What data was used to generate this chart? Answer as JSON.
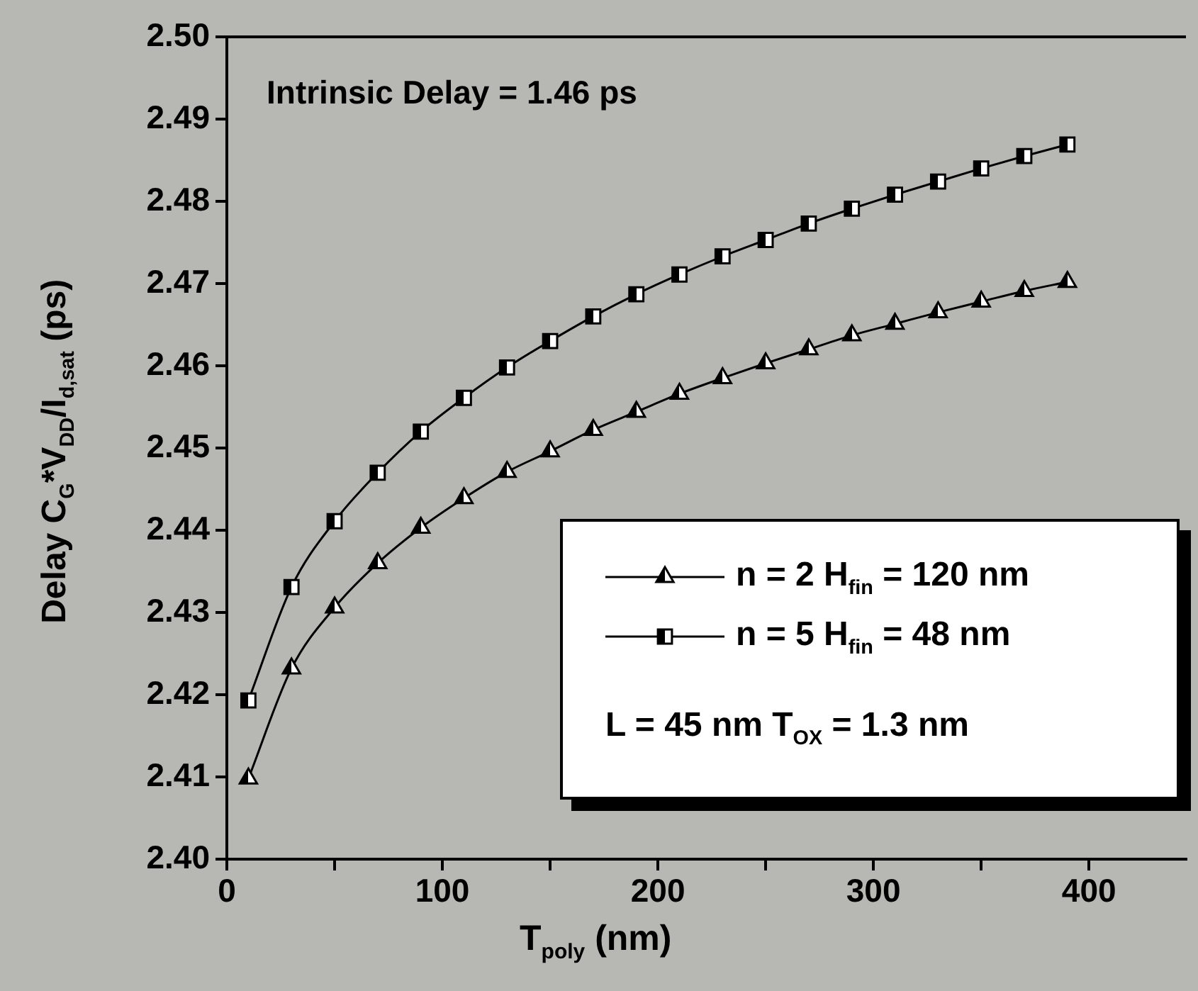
{
  "chart_data": {
    "type": "line",
    "xlabel": "T$_{poly}$  (nm)",
    "ylabel": "Delay  C$_{G}$*V$_{DD}$/I$_{d,sat}$  (ps)",
    "annotations": [
      "Intrinsic Delay = 1.46 ps",
      "L = 45 nm   T$_{OX}$ = 1.3 nm"
    ],
    "x": [
      10,
      30,
      50,
      70,
      90,
      110,
      130,
      150,
      170,
      190,
      210,
      230,
      250,
      270,
      290,
      310,
      330,
      350,
      370,
      390
    ],
    "series": [
      {
        "name": "n = 2  H$_{fin}$ = 120 nm",
        "color": "#000000",
        "marker": "triangle",
        "values": [
          2.4098,
          2.4232,
          2.4306,
          2.436,
          2.4403,
          2.4439,
          2.4471,
          2.4496,
          2.4522,
          2.4544,
          2.4566,
          2.4585,
          2.4603,
          2.462,
          2.4637,
          2.4651,
          2.4665,
          2.4678,
          2.4691,
          2.4702
        ]
      },
      {
        "name": "n = 5  H$_{fin}$ = 48 nm",
        "color": "#000000",
        "marker": "square",
        "values": [
          2.4193,
          2.4331,
          2.4411,
          2.447,
          2.452,
          2.4561,
          2.4598,
          2.463,
          2.466,
          2.4687,
          2.4711,
          2.4733,
          2.4753,
          2.4773,
          2.4791,
          2.4808,
          2.4824,
          2.484,
          2.4855,
          2.4869
        ]
      }
    ],
    "xlim": [
      0,
      445
    ],
    "xticks": [
      0,
      {
        "value": 50,
        "label": null
      },
      100,
      {
        "value": 150,
        "label": null
      },
      200,
      {
        "value": 250,
        "label": null
      },
      300,
      {
        "value": 350,
        "label": null
      },
      400
    ],
    "ylim": [
      2.4,
      2.5
    ],
    "yticks": [
      {
        "value": 2.4,
        "label": "2.40"
      },
      2.41,
      2.42,
      2.43,
      2.44,
      2.45,
      2.46,
      2.47,
      2.48,
      2.49,
      {
        "value": 2.5,
        "label": "2.50"
      }
    ],
    "grid": false,
    "legend": "bottom right",
    "line_style": "solid"
  }
}
